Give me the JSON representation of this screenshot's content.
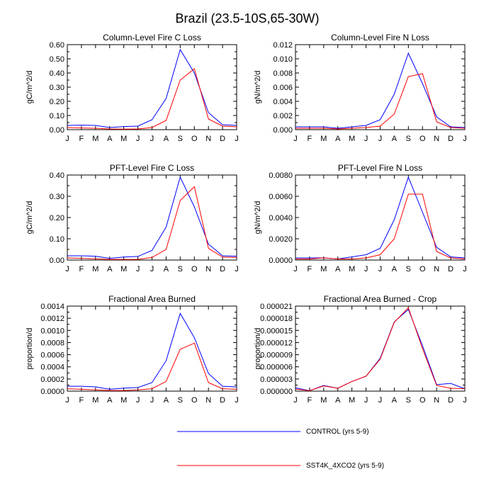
{
  "title": "Brazil (23.5-10S,65-30W)",
  "colors": {
    "control": "#0000ff",
    "sst4k": "#ff0000",
    "axis": "#000000"
  },
  "legend": {
    "control_label": "CONTROL (yrs 5-9)",
    "sst4k_label": "SST4K_4XCO2 (yrs 5-9)"
  },
  "chart_data": [
    {
      "type": "line",
      "title": "Column-Level Fire C Loss",
      "ylabel": "gC/m^2/d",
      "ylim": [
        0,
        0.6
      ],
      "yticks": [
        "0.00",
        "0.10",
        "0.20",
        "0.30",
        "0.40",
        "0.50",
        "0.60"
      ],
      "categories": [
        "J",
        "F",
        "M",
        "A",
        "M",
        "J",
        "J",
        "A",
        "S",
        "O",
        "N",
        "D",
        "J"
      ],
      "series": [
        {
          "name": "CONTROL (yrs 5-9)",
          "values": [
            0.03,
            0.032,
            0.03,
            0.015,
            0.022,
            0.025,
            0.07,
            0.22,
            0.565,
            0.4,
            0.12,
            0.035,
            0.03
          ]
        },
        {
          "name": "SST4K_4XCO2 (yrs 5-9)",
          "values": [
            0.015,
            0.012,
            0.01,
            0.005,
            0.004,
            0.005,
            0.015,
            0.065,
            0.35,
            0.43,
            0.075,
            0.025,
            0.02
          ]
        }
      ]
    },
    {
      "type": "line",
      "title": "Column-Level Fire N Loss",
      "ylabel": "gN/m^2/d",
      "ylim": [
        0,
        0.012
      ],
      "yticks": [
        "0.000",
        "0.002",
        "0.004",
        "0.006",
        "0.008",
        "0.010",
        "0.012"
      ],
      "categories": [
        "J",
        "F",
        "M",
        "A",
        "M",
        "J",
        "J",
        "A",
        "S",
        "O",
        "N",
        "D",
        "J"
      ],
      "series": [
        {
          "name": "CONTROL (yrs 5-9)",
          "values": [
            0.0004,
            0.0004,
            0.0004,
            0.0002,
            0.0004,
            0.0006,
            0.0014,
            0.005,
            0.0108,
            0.0065,
            0.0018,
            0.0004,
            0.0003
          ]
        },
        {
          "name": "SST4K_4XCO2 (yrs 5-9)",
          "values": [
            0.0002,
            0.0002,
            0.0002,
            0.0001,
            0.0002,
            0.0003,
            0.0005,
            0.0022,
            0.0075,
            0.0079,
            0.0011,
            0.0003,
            0.0002
          ]
        }
      ]
    },
    {
      "type": "line",
      "title": "PFT-Level Fire C Loss",
      "ylabel": "gC/m^2/d",
      "ylim": [
        0,
        0.4
      ],
      "yticks": [
        "0.00",
        "0.10",
        "0.20",
        "0.30",
        "0.40"
      ],
      "categories": [
        "J",
        "F",
        "M",
        "A",
        "M",
        "J",
        "J",
        "A",
        "S",
        "O",
        "N",
        "D",
        "J"
      ],
      "series": [
        {
          "name": "CONTROL (yrs 5-9)",
          "values": [
            0.02,
            0.02,
            0.018,
            0.008,
            0.014,
            0.017,
            0.045,
            0.155,
            0.39,
            0.25,
            0.075,
            0.02,
            0.018
          ]
        },
        {
          "name": "SST4K_4XCO2 (yrs 5-9)",
          "values": [
            0.01,
            0.008,
            0.006,
            0.003,
            0.003,
            0.003,
            0.012,
            0.05,
            0.28,
            0.345,
            0.055,
            0.014,
            0.012
          ]
        }
      ]
    },
    {
      "type": "line",
      "title": "PFT-Level Fire N Loss",
      "ylabel": "gN/m^2/d",
      "ylim": [
        0,
        0.008
      ],
      "yticks": [
        "0.0000",
        "0.0020",
        "0.0040",
        "0.0060",
        "0.0080"
      ],
      "categories": [
        "J",
        "F",
        "M",
        "A",
        "M",
        "J",
        "J",
        "A",
        "S",
        "O",
        "N",
        "D",
        "J"
      ],
      "series": [
        {
          "name": "CONTROL (yrs 5-9)",
          "values": [
            0.0002,
            0.0002,
            0.0002,
            0.0001,
            0.0003,
            0.0005,
            0.0011,
            0.0038,
            0.0078,
            0.0045,
            0.0012,
            0.0003,
            0.0002
          ]
        },
        {
          "name": "SST4K_4XCO2 (yrs 5-9)",
          "values": [
            0.0001,
            0.0001,
            0.0002,
            0.0001,
            0.0001,
            0.0002,
            0.0005,
            0.002,
            0.0062,
            0.0062,
            0.0008,
            0.0002,
            0.0001
          ]
        }
      ]
    },
    {
      "type": "line",
      "title": "Fractional Area Burned",
      "ylabel": "proportion/d",
      "ylim": [
        0,
        0.0014
      ],
      "yticks": [
        "0.0000",
        "0.0002",
        "0.0004",
        "0.0006",
        "0.0008",
        "0.0010",
        "0.0012",
        "0.0014"
      ],
      "categories": [
        "J",
        "F",
        "M",
        "A",
        "M",
        "J",
        "J",
        "A",
        "S",
        "O",
        "N",
        "D",
        "J"
      ],
      "series": [
        {
          "name": "CONTROL (yrs 5-9)",
          "values": [
            8e-05,
            8e-05,
            7e-05,
            3e-05,
            5e-05,
            6e-05,
            0.00014,
            0.0005,
            0.00128,
            0.00088,
            0.00029,
            8e-05,
            7e-05
          ]
        },
        {
          "name": "SST4K_4XCO2 (yrs 5-9)",
          "values": [
            4e-05,
            3e-05,
            2e-05,
            1e-05,
            1e-05,
            2e-05,
            4e-05,
            0.00016,
            0.00069,
            0.00079,
            0.00014,
            4e-05,
            3e-05
          ]
        }
      ]
    },
    {
      "type": "line",
      "title": "Fractional Area Burned - Crop",
      "ylabel": "proportion/d",
      "ylim": [
        0,
        2.1e-05
      ],
      "yticks": [
        "0.000000",
        "0.000003",
        "0.000006",
        "0.000009",
        "0.000012",
        "0.000015",
        "0.000018",
        "0.000021"
      ],
      "categories": [
        "J",
        "F",
        "M",
        "A",
        "M",
        "J",
        "J",
        "A",
        "S",
        "O",
        "N",
        "D",
        "J"
      ],
      "series": [
        {
          "name": "CONTROL (yrs 5-9)",
          "values": [
            8e-07,
            1e-07,
            1.4e-06,
            7e-07,
            2.4e-06,
            3.7e-06,
            8.1e-06,
            1.71e-05,
            2.02e-05,
            1.12e-05,
            1.6e-06,
            1.9e-06,
            6e-07
          ]
        },
        {
          "name": "SST4K_4XCO2 (yrs 5-9)",
          "values": [
            5e-07,
            1e-07,
            1.3e-06,
            7e-07,
            2.4e-06,
            3.7e-06,
            7.9e-06,
            1.7e-05,
            2.06e-05,
            1.05e-05,
            1.4e-06,
            7e-07,
            6e-07
          ]
        }
      ]
    }
  ]
}
